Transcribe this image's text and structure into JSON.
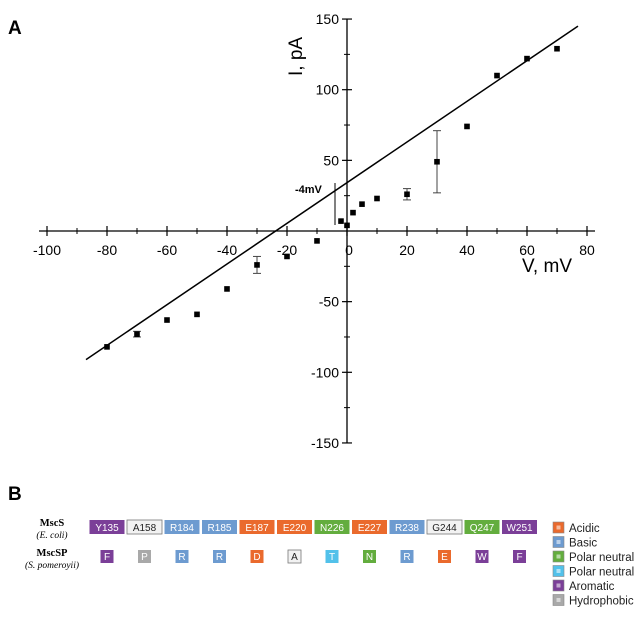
{
  "panel_a_label": "A",
  "panel_b_label": "B",
  "chart_data": {
    "type": "scatter",
    "title": "",
    "xlabel": "V, mV",
    "ylabel": "I, pA",
    "xlim": [
      -100,
      80
    ],
    "ylim": [
      -150,
      150
    ],
    "x_ticks": [
      -100,
      -80,
      -60,
      -40,
      -20,
      0,
      20,
      40,
      60,
      80
    ],
    "y_ticks": [
      -150,
      -100,
      -50,
      50,
      100,
      150
    ],
    "grid": false,
    "legend": "none",
    "annotation": "-4mV",
    "annotation_x": -4,
    "points": [
      {
        "x": -80,
        "y": -82
      },
      {
        "x": -70,
        "y": -73,
        "err": 2
      },
      {
        "x": -60,
        "y": -63
      },
      {
        "x": -50,
        "y": -59
      },
      {
        "x": -40,
        "y": -41
      },
      {
        "x": -30,
        "y": -24,
        "err": 6
      },
      {
        "x": -20,
        "y": -18
      },
      {
        "x": -10,
        "y": -7
      },
      {
        "x": -2,
        "y": 7
      },
      {
        "x": 0,
        "y": 4
      },
      {
        "x": 2,
        "y": 13
      },
      {
        "x": 5,
        "y": 19
      },
      {
        "x": 10,
        "y": 23
      },
      {
        "x": 20,
        "y": 26,
        "err": 4
      },
      {
        "x": 30,
        "y": 49,
        "err": 22
      },
      {
        "x": 40,
        "y": 74
      },
      {
        "x": 50,
        "y": 110
      },
      {
        "x": 60,
        "y": 122
      },
      {
        "x": 70,
        "y": 129
      }
    ],
    "fit_line": {
      "x": [
        -87,
        77
      ],
      "y": [
        -91,
        145
      ]
    }
  },
  "residues": {
    "rows": [
      {
        "name": "MscS",
        "species": "(E. coli)",
        "items": [
          {
            "label": "Y135",
            "class": "aromatic"
          },
          {
            "label": "A158",
            "class": "hydrophobic"
          },
          {
            "label": "R184",
            "class": "basic"
          },
          {
            "label": "R185",
            "class": "basic"
          },
          {
            "label": "E187",
            "class": "acidic"
          },
          {
            "label": "E220",
            "class": "acidic"
          },
          {
            "label": "N226",
            "class": "polar_green"
          },
          {
            "label": "E227",
            "class": "acidic"
          },
          {
            "label": "R238",
            "class": "basic"
          },
          {
            "label": "G244",
            "class": "hydrophobic"
          },
          {
            "label": "Q247",
            "class": "polar_green"
          },
          {
            "label": "W251",
            "class": "aromatic"
          }
        ]
      },
      {
        "name": "MscSP",
        "species": "(S. pomeroyii)",
        "items": [
          {
            "label": "F",
            "class": "aromatic"
          },
          {
            "label": "P",
            "class": "hydrophobic_dark"
          },
          {
            "label": "R",
            "class": "basic"
          },
          {
            "label": "R",
            "class": "basic"
          },
          {
            "label": "D",
            "class": "acidic"
          },
          {
            "label": "A",
            "class": "hydrophobic"
          },
          {
            "label": "T",
            "class": "polar_cyan"
          },
          {
            "label": "N",
            "class": "polar_green"
          },
          {
            "label": "R",
            "class": "basic"
          },
          {
            "label": "E",
            "class": "acidic"
          },
          {
            "label": "W",
            "class": "aromatic"
          },
          {
            "label": "F",
            "class": "aromatic"
          }
        ]
      }
    ],
    "colors": {
      "acidic": "#ea6a2d",
      "basic": "#6d9bd0",
      "polar_green": "#63ad3e",
      "polar_cyan": "#52c1ea",
      "aromatic": "#7b3f98",
      "hydrophobic": "#f2f2f2",
      "hydrophobic_dark": "#a9a9a9"
    },
    "legend": [
      {
        "label": "Acidic",
        "color": "#ea6a2d"
      },
      {
        "label": "Basic",
        "color": "#6d9bd0"
      },
      {
        "label": "Polar neutral",
        "color": "#63ad3e"
      },
      {
        "label": "Polar neutral",
        "color": "#52c1ea"
      },
      {
        "label": "Aromatic",
        "color": "#7b3f98"
      },
      {
        "label": "Hydrophobic",
        "color": "#a9a9a9"
      }
    ]
  }
}
